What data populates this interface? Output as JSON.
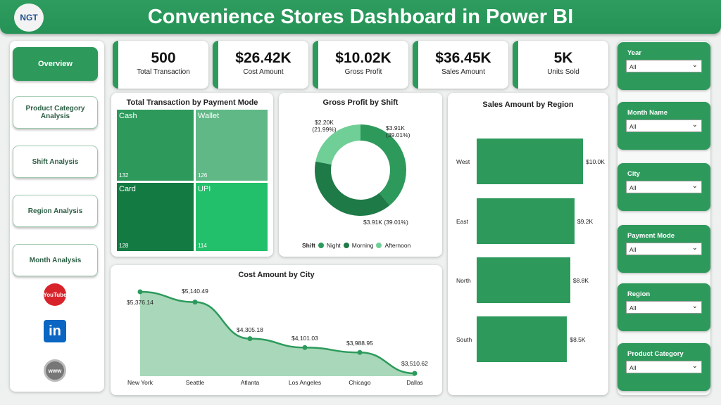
{
  "header": {
    "title": "Convenience Stores Dashboard in Power BI",
    "logo_text": "NGT"
  },
  "nav": {
    "items": [
      "Overview",
      "Product Category Analysis",
      "Shift Analysis",
      "Region Analysis",
      "Month Analysis"
    ],
    "social": [
      "YouTube",
      "in",
      "www"
    ]
  },
  "kpis": [
    {
      "value": "500",
      "label": "Total Transaction"
    },
    {
      "value": "$26.42K",
      "label": "Cost Amount"
    },
    {
      "value": "$10.02K",
      "label": "Gross Profit"
    },
    {
      "value": "$36.45K",
      "label": "Sales Amount"
    },
    {
      "value": "5K",
      "label": "Units Sold"
    }
  ],
  "slicers": [
    {
      "label": "Year",
      "value": "All"
    },
    {
      "label": "Month Name",
      "value": "All"
    },
    {
      "label": "City",
      "value": "All"
    },
    {
      "label": "Payment Mode",
      "value": "All"
    },
    {
      "label": "Region",
      "value": "All"
    },
    {
      "label": "Product Category",
      "value": "All"
    }
  ],
  "colors": {
    "accent": "#2d9a5c",
    "dark": "#1e7a47",
    "light": "#6fcf97"
  },
  "chart_data": [
    {
      "type": "treemap",
      "title": "Total Transaction by Payment Mode",
      "categories": [
        "Cash",
        "Wallet",
        "Card",
        "UPI"
      ],
      "values": [
        132,
        126,
        128,
        114
      ],
      "labels": [
        "132",
        "126",
        "128",
        "114"
      ]
    },
    {
      "type": "pie",
      "title": "Gross Profit by Shift",
      "legend_title": "Shift",
      "categories": [
        "Night",
        "Morning",
        "Afternoon"
      ],
      "values": [
        3.91,
        3.91,
        2.2
      ],
      "labels": [
        "$3.91K (39.01%)",
        "$3.91K (39.01%)",
        "$2.20K (21.99%)"
      ],
      "colors": [
        "#2d9a5c",
        "#1e7a47",
        "#6fcf97"
      ]
    },
    {
      "type": "bar",
      "title": "Sales Amount by Region",
      "categories": [
        "West",
        "East",
        "North",
        "South"
      ],
      "values": [
        10.0,
        9.2,
        8.8,
        8.5
      ],
      "labels": [
        "$10.0K",
        "$9.2K",
        "$8.8K",
        "$8.5K"
      ]
    },
    {
      "type": "area",
      "title": "Cost Amount by City",
      "categories": [
        "New York",
        "Seattle",
        "Atlanta",
        "Los Angeles",
        "Chicago",
        "Dallas"
      ],
      "values": [
        5376.14,
        5140.49,
        4305.18,
        4101.03,
        3988.95,
        3510.62
      ],
      "labels": [
        "$5,376.14",
        "$5,140.49",
        "$4,305.18",
        "$4,101.03",
        "$3,988.95",
        "$3,510.62"
      ]
    }
  ]
}
